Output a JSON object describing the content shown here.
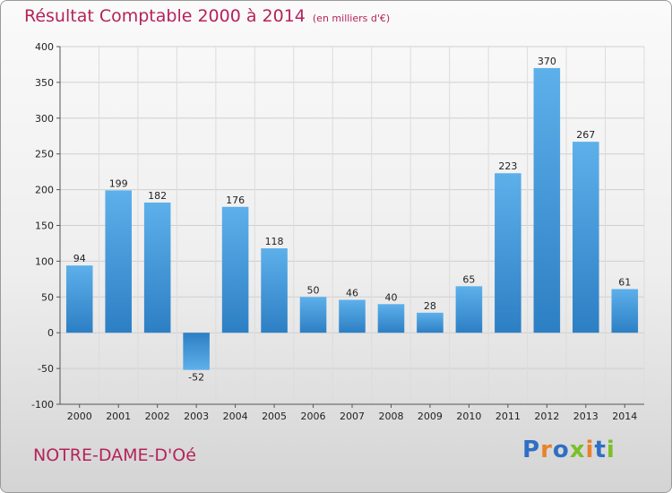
{
  "header": {
    "title": "Résultat Comptable 2000 à 2014",
    "subtitle": "(en milliers d'€)"
  },
  "footer": {
    "town": "NOTRE-DAME-D'Oé",
    "logo_letters": [
      {
        "char": "P",
        "color": "#2f6fc4"
      },
      {
        "char": "r",
        "color": "#e8832a"
      },
      {
        "char": "o",
        "color": "#2f6fc4"
      },
      {
        "char": "x",
        "color": "#7bbf2a"
      },
      {
        "char": "i",
        "color": "#e8832a"
      },
      {
        "char": "t",
        "color": "#2f6fc4"
      },
      {
        "char": "i",
        "color": "#7bbf2a"
      }
    ]
  },
  "chart_data": {
    "type": "bar",
    "title": "Résultat Comptable 2000 à 2014",
    "subtitle": "(en milliers d'€)",
    "categories": [
      "2000",
      "2001",
      "2002",
      "2003",
      "2004",
      "2005",
      "2006",
      "2007",
      "2008",
      "2009",
      "2010",
      "2011",
      "2012",
      "2013",
      "2014"
    ],
    "values": [
      94,
      199,
      182,
      -52,
      176,
      118,
      50,
      46,
      40,
      28,
      65,
      223,
      370,
      267,
      61
    ],
    "ylim": [
      -100,
      400
    ],
    "yticks": [
      -100,
      -50,
      0,
      50,
      100,
      150,
      200,
      250,
      300,
      350,
      400
    ],
    "grid": true,
    "bar_color": "#4aa0de"
  }
}
